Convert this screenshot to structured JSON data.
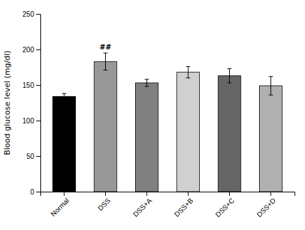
{
  "chart_data": {
    "type": "bar",
    "categories": [
      "Normal",
      "DSS",
      "DSS+A",
      "DSS+B",
      "DSS+C",
      "DSS+D"
    ],
    "values": [
      134,
      183,
      153,
      168,
      163,
      149
    ],
    "errors": [
      4,
      12,
      5,
      8,
      10,
      13
    ],
    "colors": [
      "#000000",
      "#989898",
      "#808080",
      "#d0d0d0",
      "#666666",
      "#b0b0b0"
    ],
    "y_label": "Blood glucose level  (mg/dl)",
    "ylim": [
      0,
      250
    ],
    "yticks": [
      0,
      50,
      100,
      150,
      200,
      250
    ],
    "annotations": [
      {
        "text": "##",
        "x": "DSS"
      }
    ]
  }
}
